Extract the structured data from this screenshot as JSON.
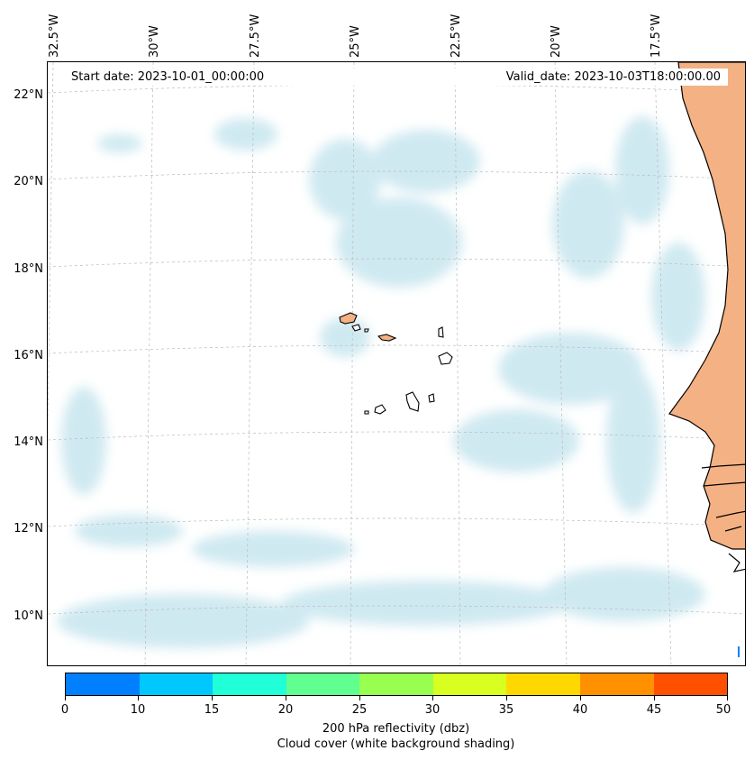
{
  "map": {
    "lon_labels": [
      "32.5°W",
      "30°W",
      "27.5°W",
      "25°W",
      "22.5°W",
      "20°W",
      "17.5°W"
    ],
    "lat_labels": [
      "22°N",
      "20°N",
      "18°N",
      "16°N",
      "14°N",
      "12°N",
      "10°N"
    ],
    "start_date": "Start date: 2023-10-01_00:00:00",
    "valid_date": "Valid_date: 2023-10-03T18:00:00.00",
    "land_color": "#f4b183",
    "cloud_color": "#a9d8e6"
  },
  "colorbar": {
    "colors": [
      "#0080ff",
      "#00c8ff",
      "#20ffd8",
      "#60ff90",
      "#98ff50",
      "#d8ff20",
      "#ffd800",
      "#ff9000",
      "#ff5000"
    ],
    "tick_labels": [
      "0",
      "10",
      "15",
      "20",
      "25",
      "30",
      "35",
      "40",
      "45",
      "50"
    ],
    "title_line1": "200 hPa reflectivity (dbz)",
    "title_line2": "Cloud cover (white background shading)"
  }
}
